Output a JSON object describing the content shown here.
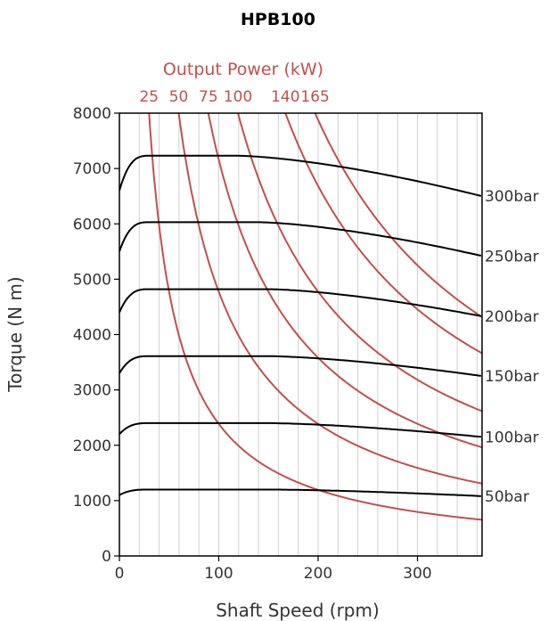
{
  "chart_data": {
    "type": "line",
    "title": "HPB100",
    "xlabel": "Shaft Speed (rpm)",
    "ylabel": "Torque (N m)",
    "xlim": [
      0,
      365
    ],
    "ylim": [
      0,
      8000
    ],
    "x_ticks": [
      "0",
      "100",
      "200",
      "300"
    ],
    "y_ticks": [
      "0",
      "1000",
      "2000",
      "3000",
      "4000",
      "5000",
      "6000",
      "7000",
      "8000"
    ],
    "grid": "vertical",
    "power_axis_title": "Output Power (kW)",
    "colors": {
      "torque": "#000000",
      "power": "#c0504d",
      "grid": "#d0d0d0"
    },
    "pressure_series": [
      {
        "name": "300bar",
        "start": 6600,
        "plateau": 7230,
        "knee_x": 120,
        "end": 6500
      },
      {
        "name": "250bar",
        "start": 5500,
        "plateau": 6030,
        "knee_x": 140,
        "end": 5420
      },
      {
        "name": "200bar",
        "start": 4400,
        "plateau": 4820,
        "knee_x": 150,
        "end": 4330
      },
      {
        "name": "150bar",
        "start": 3300,
        "plateau": 3610,
        "knee_x": 150,
        "end": 3250
      },
      {
        "name": "100bar",
        "start": 2200,
        "plateau": 2400,
        "knee_x": 150,
        "end": 2150
      },
      {
        "name": "50bar",
        "start": 1100,
        "plateau": 1200,
        "knee_x": 150,
        "end": 1080
      }
    ],
    "power_series": [
      {
        "name": "25",
        "kw": 25
      },
      {
        "name": "50",
        "kw": 50
      },
      {
        "name": "75",
        "kw": 75
      },
      {
        "name": "100",
        "kw": 100
      },
      {
        "name": "140",
        "kw": 140
      },
      {
        "name": "165",
        "kw": 165
      }
    ]
  }
}
